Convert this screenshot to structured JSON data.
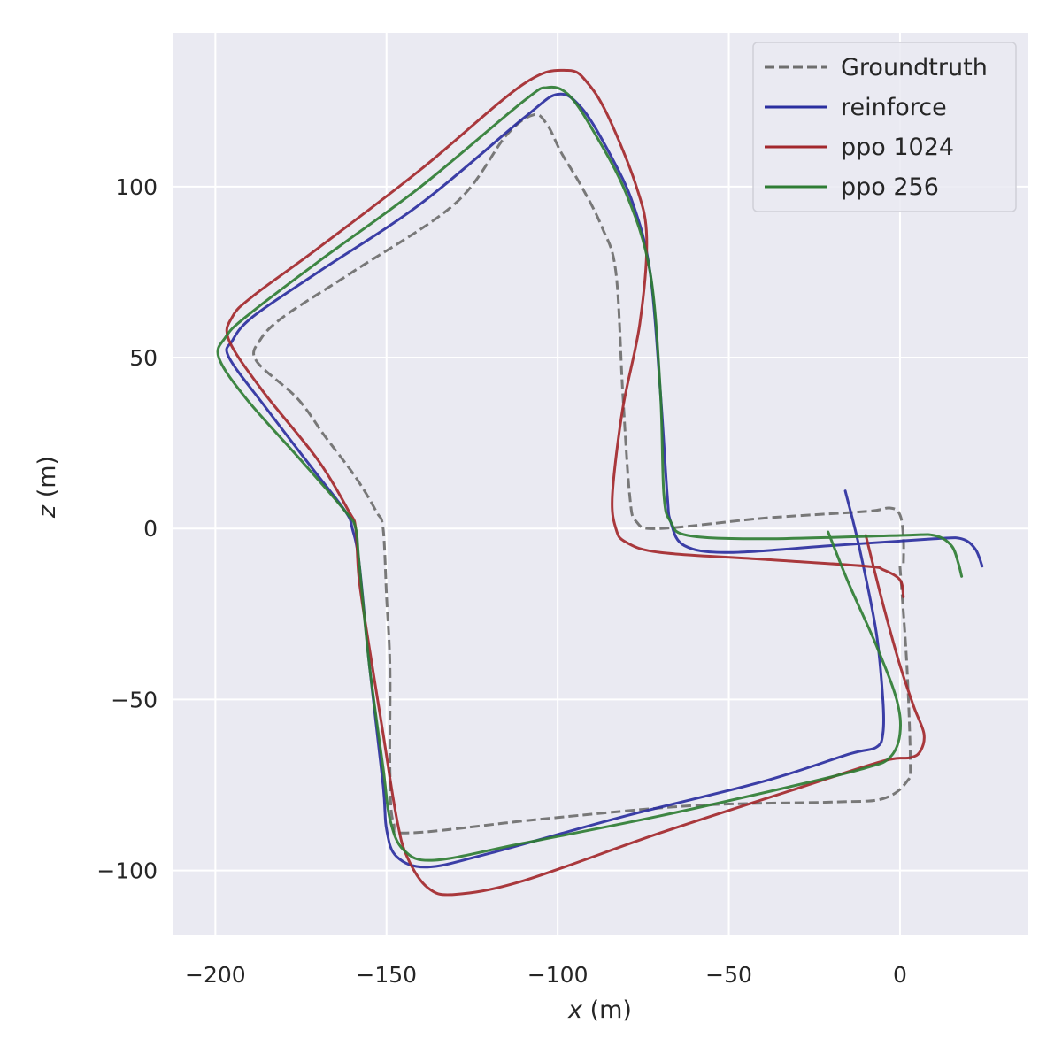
{
  "chart_data": {
    "type": "line",
    "xlabel_var": "x",
    "xlabel_unit": " (m)",
    "ylabel_var": "z",
    "ylabel_unit": " (m)",
    "xlim": [
      -212.5,
      37.5
    ],
    "ylim": [
      -119,
      145
    ],
    "xticks": [
      -200,
      -150,
      -100,
      -50,
      0
    ],
    "xtick_labels": [
      "−200",
      "−150",
      "−100",
      "−50",
      "0"
    ],
    "yticks": [
      -100,
      -50,
      0,
      50,
      100
    ],
    "ytick_labels": [
      "−100",
      "−50",
      "0",
      "50",
      "100"
    ],
    "grid": true,
    "legend_position": "top-right",
    "background_color": "#eaeaf2",
    "series": [
      {
        "name": "Groundtruth",
        "color": "#6e6e6e",
        "dash": true,
        "points": [
          [
            0,
            -11
          ],
          [
            2,
            -40
          ],
          [
            3,
            -68
          ],
          [
            2,
            -74
          ],
          [
            -5,
            -79
          ],
          [
            -20,
            -80
          ],
          [
            -60,
            -81
          ],
          [
            -105,
            -85
          ],
          [
            -143,
            -89
          ],
          [
            -148,
            -86
          ],
          [
            -149,
            -70
          ],
          [
            -149,
            -40
          ],
          [
            -150,
            -20
          ],
          [
            -151,
            0
          ],
          [
            -153,
            5
          ],
          [
            -159,
            15
          ],
          [
            -168,
            27
          ],
          [
            -176,
            38
          ],
          [
            -188,
            49
          ],
          [
            -187,
            55
          ],
          [
            -180,
            62
          ],
          [
            -160,
            75
          ],
          [
            -130,
            95
          ],
          [
            -115,
            115
          ],
          [
            -107,
            121
          ],
          [
            -103,
            118
          ],
          [
            -99,
            110
          ],
          [
            -93,
            100
          ],
          [
            -87,
            88
          ],
          [
            -83,
            75
          ],
          [
            -81,
            40
          ],
          [
            -79,
            10
          ],
          [
            -77,
            2
          ],
          [
            -70,
            0
          ],
          [
            -40,
            3
          ],
          [
            -10,
            5
          ],
          [
            -3,
            6
          ],
          [
            0,
            4
          ],
          [
            1,
            -3
          ],
          [
            1,
            -11
          ]
        ]
      },
      {
        "name": "reinforce",
        "color": "#2b2fa0",
        "dash": false,
        "points": [
          [
            -16,
            11
          ],
          [
            -12,
            -5
          ],
          [
            -7,
            -30
          ],
          [
            -5,
            -50
          ],
          [
            -5,
            -60
          ],
          [
            -7,
            -64
          ],
          [
            -15,
            -66
          ],
          [
            -40,
            -74
          ],
          [
            -80,
            -84
          ],
          [
            -120,
            -95
          ],
          [
            -138,
            -99
          ],
          [
            -147,
            -96
          ],
          [
            -150,
            -88
          ],
          [
            -151,
            -75
          ],
          [
            -155,
            -40
          ],
          [
            -158,
            -10
          ],
          [
            -160,
            0
          ],
          [
            -162,
            5
          ],
          [
            -172,
            18
          ],
          [
            -185,
            35
          ],
          [
            -196,
            50
          ],
          [
            -195,
            55
          ],
          [
            -189,
            62
          ],
          [
            -170,
            75
          ],
          [
            -140,
            95
          ],
          [
            -110,
            120
          ],
          [
            -100,
            127
          ],
          [
            -93,
            123
          ],
          [
            -85,
            110
          ],
          [
            -78,
            95
          ],
          [
            -73,
            75
          ],
          [
            -70,
            40
          ],
          [
            -68,
            10
          ],
          [
            -67,
            2
          ],
          [
            -63,
            -5
          ],
          [
            -50,
            -7
          ],
          [
            -20,
            -5
          ],
          [
            10,
            -3
          ],
          [
            18,
            -3
          ],
          [
            22,
            -6
          ],
          [
            24,
            -11
          ]
        ]
      },
      {
        "name": "ppo 1024",
        "color": "#a3282d",
        "dash": false,
        "points": [
          [
            -10,
            -2
          ],
          [
            -5,
            -22
          ],
          [
            0,
            -40
          ],
          [
            4,
            -52
          ],
          [
            7,
            -60
          ],
          [
            6,
            -65
          ],
          [
            3,
            -67
          ],
          [
            -5,
            -68
          ],
          [
            -30,
            -76
          ],
          [
            -70,
            -89
          ],
          [
            -110,
            -103
          ],
          [
            -130,
            -107
          ],
          [
            -138,
            -105
          ],
          [
            -144,
            -96
          ],
          [
            -147,
            -85
          ],
          [
            -151,
            -60
          ],
          [
            -155,
            -35
          ],
          [
            -158,
            -15
          ],
          [
            -159,
            0
          ],
          [
            -161,
            5
          ],
          [
            -170,
            20
          ],
          [
            -186,
            40
          ],
          [
            -196,
            55
          ],
          [
            -195,
            62
          ],
          [
            -189,
            68
          ],
          [
            -170,
            82
          ],
          [
            -140,
            105
          ],
          [
            -110,
            130
          ],
          [
            -97,
            134
          ],
          [
            -91,
            130
          ],
          [
            -85,
            120
          ],
          [
            -77,
            100
          ],
          [
            -74,
            85
          ],
          [
            -76,
            60
          ],
          [
            -81,
            35
          ],
          [
            -84,
            10
          ],
          [
            -83,
            0
          ],
          [
            -80,
            -4
          ],
          [
            -70,
            -7
          ],
          [
            -40,
            -9
          ],
          [
            -10,
            -11
          ],
          [
            -5,
            -12
          ],
          [
            0,
            -15
          ],
          [
            1,
            -20
          ]
        ]
      },
      {
        "name": "ppo 256",
        "color": "#2f7d34",
        "dash": false,
        "points": [
          [
            -21,
            -1
          ],
          [
            -15,
            -16
          ],
          [
            -7,
            -34
          ],
          [
            -1,
            -50
          ],
          [
            0,
            -60
          ],
          [
            -3,
            -67
          ],
          [
            -10,
            -70
          ],
          [
            -30,
            -75
          ],
          [
            -70,
            -84
          ],
          [
            -110,
            -92
          ],
          [
            -136,
            -97
          ],
          [
            -145,
            -94
          ],
          [
            -149,
            -85
          ],
          [
            -151,
            -70
          ],
          [
            -155,
            -40
          ],
          [
            -158,
            -10
          ],
          [
            -159,
            0
          ],
          [
            -162,
            5
          ],
          [
            -175,
            20
          ],
          [
            -191,
            38
          ],
          [
            -199,
            50
          ],
          [
            -197,
            56
          ],
          [
            -191,
            62
          ],
          [
            -170,
            78
          ],
          [
            -140,
            100
          ],
          [
            -110,
            125
          ],
          [
            -103,
            129
          ],
          [
            -97,
            127
          ],
          [
            -90,
            117
          ],
          [
            -80,
            98
          ],
          [
            -73,
            75
          ],
          [
            -70,
            40
          ],
          [
            -69,
            10
          ],
          [
            -67,
            2
          ],
          [
            -62,
            -2
          ],
          [
            -40,
            -3
          ],
          [
            0,
            -2
          ],
          [
            10,
            -2
          ],
          [
            15,
            -5
          ],
          [
            17,
            -10
          ],
          [
            18,
            -14
          ]
        ]
      }
    ]
  }
}
